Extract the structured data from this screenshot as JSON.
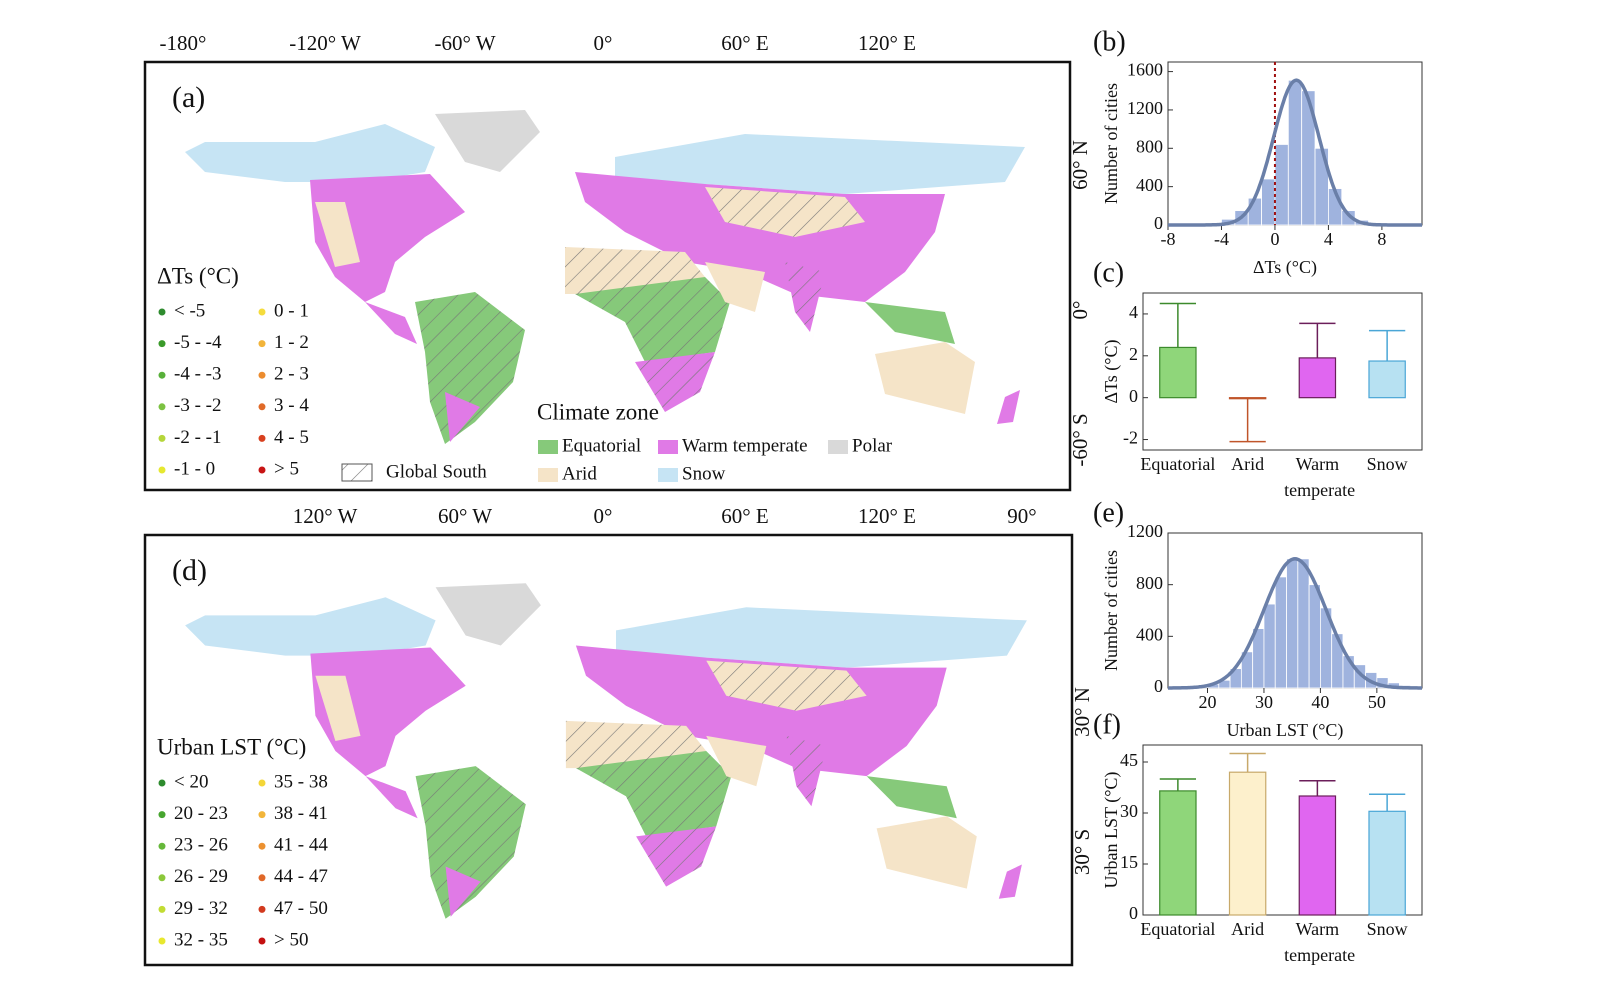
{
  "chart_data": [
    {
      "type": "map",
      "panel": "(a)",
      "top_labels": [
        "-180°",
        "-120° W",
        "-60° W",
        "0°",
        "60° E",
        "120° E"
      ],
      "side_labels": [
        "60° N",
        "0°",
        "-60° S"
      ],
      "legend_title": "ΔTs (°C)",
      "legend": {
        "labels": [
          "< -5",
          "-5 - -4",
          "-4 - -3",
          "-3 - -2",
          "-2 - -1",
          "-1 - 0",
          "0 - 1",
          "1 - 2",
          "2 - 3",
          "3 - 4",
          "4 - 5",
          "> 5"
        ],
        "colors": [
          "#2e8b2e",
          "#3a9a2a",
          "#58b03a",
          "#7cc242",
          "#b5d63a",
          "#e6e830",
          "#f5dc3c",
          "#f2b43a",
          "#ec8c2e",
          "#e06a28",
          "#d8401e",
          "#c81414"
        ]
      },
      "climate_zone": {
        "title": "Climate zone",
        "names": [
          "Equatorial",
          "Warm temperate",
          "Polar",
          "Arid",
          "Snow"
        ],
        "colors": [
          "#86c97a",
          "#e07ae6",
          "#d9d9d9",
          "#f5e4c8",
          "#c6e4f4"
        ]
      },
      "hatch_label": "Global South"
    },
    {
      "type": "histogram",
      "panel": "(b)",
      "xlabel": "ΔTs (°C)",
      "ylabel": "Number of cities",
      "bins": [
        -6,
        -5,
        -4,
        -3,
        -2,
        -1,
        0,
        1,
        2,
        3,
        4,
        5,
        6,
        7,
        8
      ],
      "values": [
        10,
        20,
        60,
        150,
        280,
        480,
        840,
        1510,
        1400,
        800,
        380,
        150,
        50,
        20
      ],
      "fit": {
        "mean": 1.6,
        "sd": 1.7,
        "peak": 1510
      },
      "reference_line": 0,
      "color": "#9fb3de",
      "line_color": "#6a7fa8",
      "xlim": [
        -8,
        11
      ],
      "ylim": [
        0,
        1700
      ],
      "xticks": [
        -8,
        -4,
        0,
        4,
        8
      ],
      "yticks": [
        0,
        400,
        800,
        1200,
        1600
      ]
    },
    {
      "type": "bar",
      "panel": "(c)",
      "ylabel": "ΔTs (°C)",
      "categories": [
        "Equatorial",
        "Arid",
        "Warm temperate",
        "Snow"
      ],
      "values": [
        2.4,
        -0.05,
        1.9,
        1.75
      ],
      "errors": [
        2.1,
        2.05,
        1.65,
        1.45
      ],
      "colors": [
        "#8fd67a",
        "#f5e6c8",
        "#e066f0",
        "#b7e1f2"
      ],
      "edge_colors": [
        "#3c8a2c",
        "#c0552a",
        "#6b1e5a",
        "#4aa6d6"
      ],
      "ylim": [
        -2.5,
        5
      ],
      "yticks": [
        -2,
        0,
        2,
        4
      ]
    },
    {
      "type": "map",
      "panel": "(d)",
      "top_labels": [
        "120° W",
        "60° W",
        "0°",
        "60° E",
        "120° E",
        "90°"
      ],
      "side_labels": [
        "30° N",
        "30° S"
      ],
      "legend_title": "Urban LST (°C)",
      "legend": {
        "labels": [
          "< 20",
          "20 - 23",
          "23 - 26",
          "26 - 29",
          "29 - 32",
          "32 - 35",
          "35 - 38",
          "38 - 41",
          "41 - 44",
          "44 - 47",
          "47 - 50",
          "> 50"
        ],
        "colors": [
          "#2e8b2e",
          "#47a52f",
          "#66b83a",
          "#8bc83a",
          "#c2dc33",
          "#e8e82e",
          "#f4d637",
          "#f2b53a",
          "#ec9130",
          "#e06828",
          "#d23a1e",
          "#c41010"
        ]
      }
    },
    {
      "type": "histogram",
      "panel": "(e)",
      "xlabel": "Urban LST (°C)",
      "ylabel": "Number of cities",
      "bins": [
        16,
        18,
        20,
        22,
        24,
        26,
        28,
        30,
        32,
        34,
        36,
        38,
        40,
        42,
        44,
        46,
        48,
        50,
        52,
        54,
        56
      ],
      "values": [
        5,
        10,
        30,
        60,
        150,
        280,
        460,
        650,
        860,
        1000,
        1000,
        800,
        620,
        420,
        250,
        180,
        120,
        80,
        40,
        20
      ],
      "fit": {
        "mean": 35.5,
        "sd": 5.5,
        "peak": 1000
      },
      "color": "#9fb3de",
      "line_color": "#6a7fa8",
      "xlim": [
        13,
        58
      ],
      "ylim": [
        0,
        1200
      ],
      "xticks": [
        20,
        30,
        40,
        50
      ],
      "yticks": [
        0,
        400,
        800,
        1200
      ]
    },
    {
      "type": "bar",
      "panel": "(f)",
      "ylabel": "Urban LST (°C)",
      "categories": [
        "Equatorial",
        "Arid",
        "Warm temperate",
        "Snow"
      ],
      "values": [
        36.5,
        42,
        35,
        30.5
      ],
      "errors": [
        3.5,
        5.5,
        4.5,
        5
      ],
      "colors": [
        "#8fd67a",
        "#fdf0cc",
        "#e066f0",
        "#b7e1f2"
      ],
      "edge_colors": [
        "#3c8a2c",
        "#c8a96a",
        "#6b1e5a",
        "#4aa6d6"
      ],
      "ylim": [
        0,
        50
      ],
      "yticks": [
        0,
        15,
        30,
        45
      ]
    }
  ]
}
